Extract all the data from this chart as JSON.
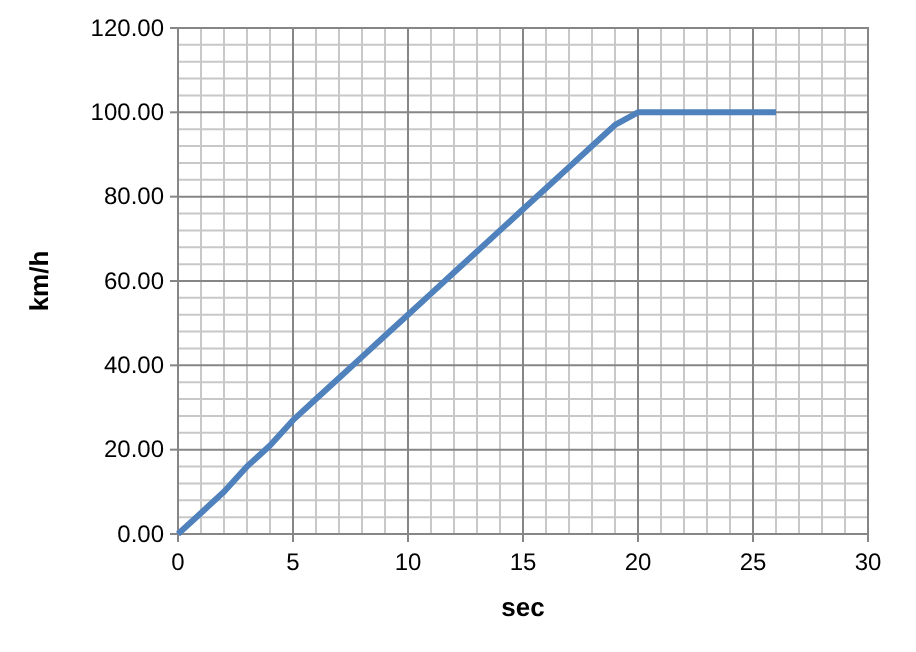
{
  "chart_data": {
    "type": "line",
    "xlabel": "sec",
    "ylabel": "km/h",
    "x": [
      0,
      1,
      2,
      3,
      4,
      5,
      6,
      7,
      8,
      9,
      10,
      11,
      12,
      13,
      14,
      15,
      16,
      17,
      18,
      19,
      20,
      21,
      22,
      23,
      24,
      25,
      26
    ],
    "series": [
      {
        "color": "#4f81bd",
        "values": [
          0,
          5,
          10,
          16,
          21,
          27,
          32,
          37,
          42,
          47,
          52,
          57,
          62,
          67,
          72,
          77,
          82,
          87,
          92,
          97,
          100,
          100,
          100,
          100,
          100,
          100,
          100
        ]
      }
    ],
    "xlim": [
      0,
      30
    ],
    "xticks": [
      0,
      5,
      10,
      15,
      20,
      25,
      30
    ],
    "ylim": [
      0,
      120
    ],
    "yticks": [
      {
        "value": 0,
        "label": "0.00"
      },
      {
        "value": 20,
        "label": "20.00"
      },
      {
        "value": 40,
        "label": "40.00"
      },
      {
        "value": 60,
        "label": "60.00"
      },
      {
        "value": 80,
        "label": "80.00"
      },
      {
        "value": 100,
        "label": "100.00"
      },
      {
        "value": 120,
        "label": "120.00"
      }
    ],
    "grid": true,
    "marker": "none",
    "line_style": "solid"
  }
}
